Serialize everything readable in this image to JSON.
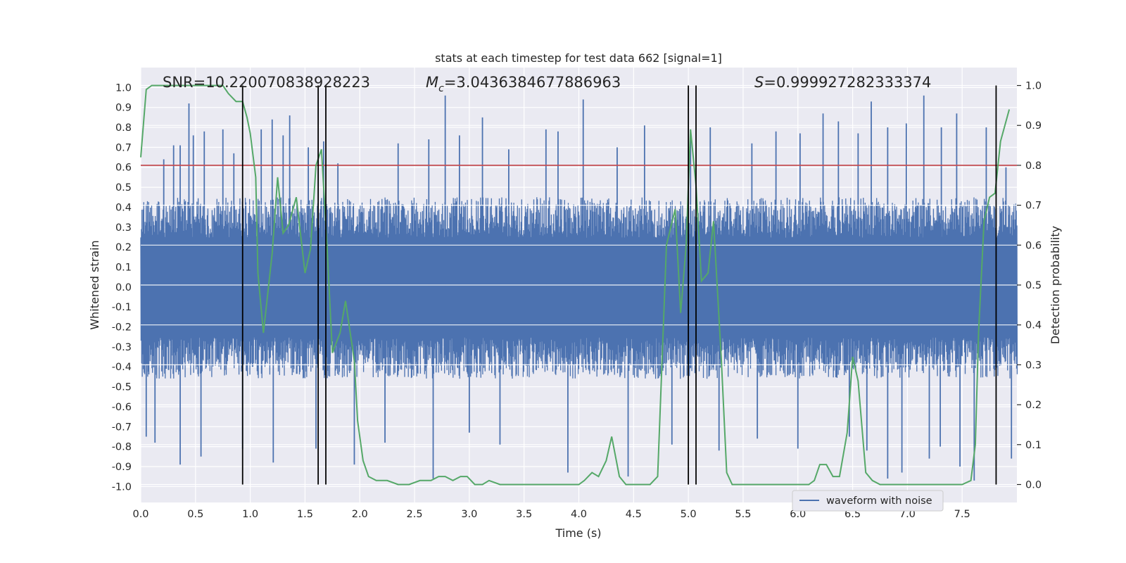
{
  "chart_data": {
    "type": "line",
    "title": "stats at each timestep for test data 662 [signal=1]",
    "xlabel": "Time (s)",
    "ylabel": "Whitened strain",
    "y2label": "Detection probability",
    "xlim": [
      0.0,
      8.0
    ],
    "ylim": [
      -1.08,
      1.1
    ],
    "y2lim": [
      -0.045,
      1.045
    ],
    "xticks": [
      "0.0",
      "0.5",
      "1.0",
      "1.5",
      "2.0",
      "2.5",
      "3.0",
      "3.5",
      "4.0",
      "4.5",
      "5.0",
      "5.5",
      "6.0",
      "6.5",
      "7.0",
      "7.5"
    ],
    "yticks": [
      "1.0",
      "0.9",
      "0.8",
      "0.7",
      "0.6",
      "0.5",
      "0.4",
      "0.3",
      "0.2",
      "0.1",
      "0.0",
      "-0.1",
      "-0.2",
      "-0.3",
      "-0.4",
      "-0.5",
      "-0.6",
      "-0.7",
      "-0.8",
      "-0.9",
      "-1.0"
    ],
    "y2ticks": [
      "1.0",
      "0.9",
      "0.8",
      "0.7",
      "0.6",
      "0.5",
      "0.4",
      "0.3",
      "0.2",
      "0.1",
      "0.0"
    ],
    "grid": true,
    "legend_position": "lower-right",
    "annotations": {
      "snr": "SNR=10.220070838928223",
      "mc_symbol": "M",
      "mc_sub": "c",
      "mc_value": "=3.0436384677886963",
      "s_symbol": "S",
      "s_value": "=0.999927282333374"
    },
    "series": [
      {
        "name": "waveform with noise",
        "axis": "left",
        "color": "#4c72b0",
        "typical_band": [
          -0.46,
          0.45
        ],
        "peaks_up": [
          [
            0.44,
            0.92
          ],
          [
            0.21,
            0.64
          ],
          [
            0.3,
            0.71
          ],
          [
            0.36,
            0.71
          ],
          [
            0.48,
            0.76
          ],
          [
            0.58,
            0.78
          ],
          [
            0.75,
            0.79
          ],
          [
            0.85,
            0.67
          ],
          [
            1.1,
            0.79
          ],
          [
            1.2,
            0.84
          ],
          [
            1.3,
            0.76
          ],
          [
            1.36,
            0.86
          ],
          [
            1.53,
            0.7
          ],
          [
            1.67,
            0.73
          ],
          [
            1.8,
            0.62
          ],
          [
            2.35,
            0.72
          ],
          [
            2.63,
            0.74
          ],
          [
            2.78,
            0.96
          ],
          [
            2.91,
            0.76
          ],
          [
            3.12,
            0.85
          ],
          [
            3.36,
            0.69
          ],
          [
            3.7,
            0.79
          ],
          [
            3.81,
            0.78
          ],
          [
            4.04,
            0.94
          ],
          [
            4.35,
            0.7
          ],
          [
            4.6,
            0.81
          ],
          [
            5.02,
            0.75
          ],
          [
            5.2,
            0.8
          ],
          [
            5.58,
            0.72
          ],
          [
            5.8,
            0.78
          ],
          [
            6.02,
            0.77
          ],
          [
            6.23,
            0.87
          ],
          [
            6.37,
            0.83
          ],
          [
            6.55,
            0.77
          ],
          [
            6.67,
            0.93
          ],
          [
            6.82,
            0.8
          ],
          [
            6.99,
            0.82
          ],
          [
            7.15,
            0.96
          ],
          [
            7.31,
            0.8
          ],
          [
            7.45,
            0.87
          ],
          [
            7.72,
            0.8
          ],
          [
            7.9,
            0.6
          ]
        ],
        "peaks_down": [
          [
            0.36,
            -0.89
          ],
          [
            0.05,
            -0.75
          ],
          [
            0.13,
            -0.78
          ],
          [
            0.55,
            -0.85
          ],
          [
            0.93,
            -0.81
          ],
          [
            1.21,
            -0.88
          ],
          [
            1.6,
            -0.81
          ],
          [
            1.95,
            -0.89
          ],
          [
            2.23,
            -0.78
          ],
          [
            2.67,
            -0.96
          ],
          [
            3.0,
            -0.73
          ],
          [
            3.28,
            -0.79
          ],
          [
            3.9,
            -0.93
          ],
          [
            4.45,
            -0.95
          ],
          [
            4.85,
            -0.79
          ],
          [
            5.28,
            -0.82
          ],
          [
            5.63,
            -0.76
          ],
          [
            6.0,
            -0.81
          ],
          [
            6.47,
            -0.75
          ],
          [
            6.63,
            -0.82
          ],
          [
            6.82,
            -0.96
          ],
          [
            6.95,
            -0.93
          ],
          [
            7.2,
            -0.86
          ],
          [
            7.3,
            -0.8
          ],
          [
            7.48,
            -0.9
          ],
          [
            7.61,
            -0.97
          ],
          [
            7.95,
            -0.86
          ]
        ]
      },
      {
        "name": "",
        "axis": "right",
        "color": "#55a868",
        "x": [
          0.0,
          0.05,
          0.1,
          0.2,
          0.3,
          0.4,
          0.5,
          0.6,
          0.7,
          0.75,
          0.8,
          0.87,
          0.93,
          0.97,
          1.0,
          1.05,
          1.07,
          1.12,
          1.2,
          1.25,
          1.3,
          1.35,
          1.42,
          1.5,
          1.55,
          1.6,
          1.65,
          1.7,
          1.75,
          1.82,
          1.87,
          1.95,
          1.98,
          2.03,
          2.08,
          2.15,
          2.25,
          2.35,
          2.45,
          2.55,
          2.65,
          2.72,
          2.78,
          2.85,
          2.92,
          2.98,
          3.05,
          3.12,
          3.18,
          3.28,
          3.38,
          3.5,
          3.62,
          3.75,
          3.88,
          4.0,
          4.05,
          4.12,
          4.18,
          4.25,
          4.3,
          4.37,
          4.43,
          4.5,
          4.58,
          4.65,
          4.72,
          4.8,
          4.88,
          4.93,
          4.98,
          5.02,
          5.07,
          5.12,
          5.18,
          5.23,
          5.3,
          5.35,
          5.4,
          5.45,
          5.55,
          5.7,
          5.85,
          6.0,
          6.1,
          6.15,
          6.2,
          6.26,
          6.32,
          6.38,
          6.45,
          6.5,
          6.55,
          6.62,
          6.68,
          6.75,
          6.85,
          6.95,
          7.05,
          7.2,
          7.35,
          7.5,
          7.58,
          7.62,
          7.65,
          7.7,
          7.75,
          7.8,
          7.85,
          7.93
        ],
        "y": [
          0.82,
          0.99,
          1.0,
          1.0,
          1.0,
          1.0,
          1.0,
          1.0,
          1.0,
          1.0,
          0.98,
          0.96,
          0.96,
          0.92,
          0.88,
          0.77,
          0.53,
          0.38,
          0.58,
          0.77,
          0.63,
          0.65,
          0.72,
          0.53,
          0.59,
          0.8,
          0.84,
          0.6,
          0.33,
          0.38,
          0.46,
          0.31,
          0.16,
          0.06,
          0.02,
          0.01,
          0.01,
          0.0,
          0.0,
          0.01,
          0.01,
          0.02,
          0.02,
          0.01,
          0.02,
          0.02,
          0.0,
          0.0,
          0.01,
          0.0,
          0.0,
          0.0,
          0.0,
          0.0,
          0.0,
          0.0,
          0.01,
          0.03,
          0.02,
          0.06,
          0.12,
          0.02,
          0.0,
          0.0,
          0.0,
          0.0,
          0.02,
          0.6,
          0.69,
          0.43,
          0.6,
          0.89,
          0.75,
          0.51,
          0.53,
          0.66,
          0.32,
          0.03,
          0.0,
          0.0,
          0.0,
          0.0,
          0.0,
          0.0,
          0.0,
          0.01,
          0.05,
          0.05,
          0.02,
          0.02,
          0.13,
          0.32,
          0.26,
          0.03,
          0.01,
          0.0,
          0.0,
          0.0,
          0.0,
          0.0,
          0.0,
          0.0,
          0.01,
          0.1,
          0.38,
          0.66,
          0.72,
          0.73,
          0.86,
          0.94
        ]
      },
      {
        "name": "",
        "axis": "right",
        "color": "#c44e52",
        "type": "hline",
        "y": 0.8
      }
    ],
    "vlines": {
      "color": "#000000",
      "x": [
        0.93,
        1.62,
        1.69,
        5.0,
        5.07,
        7.81
      ],
      "y_range": [
        0.0,
        1.0
      ]
    }
  }
}
